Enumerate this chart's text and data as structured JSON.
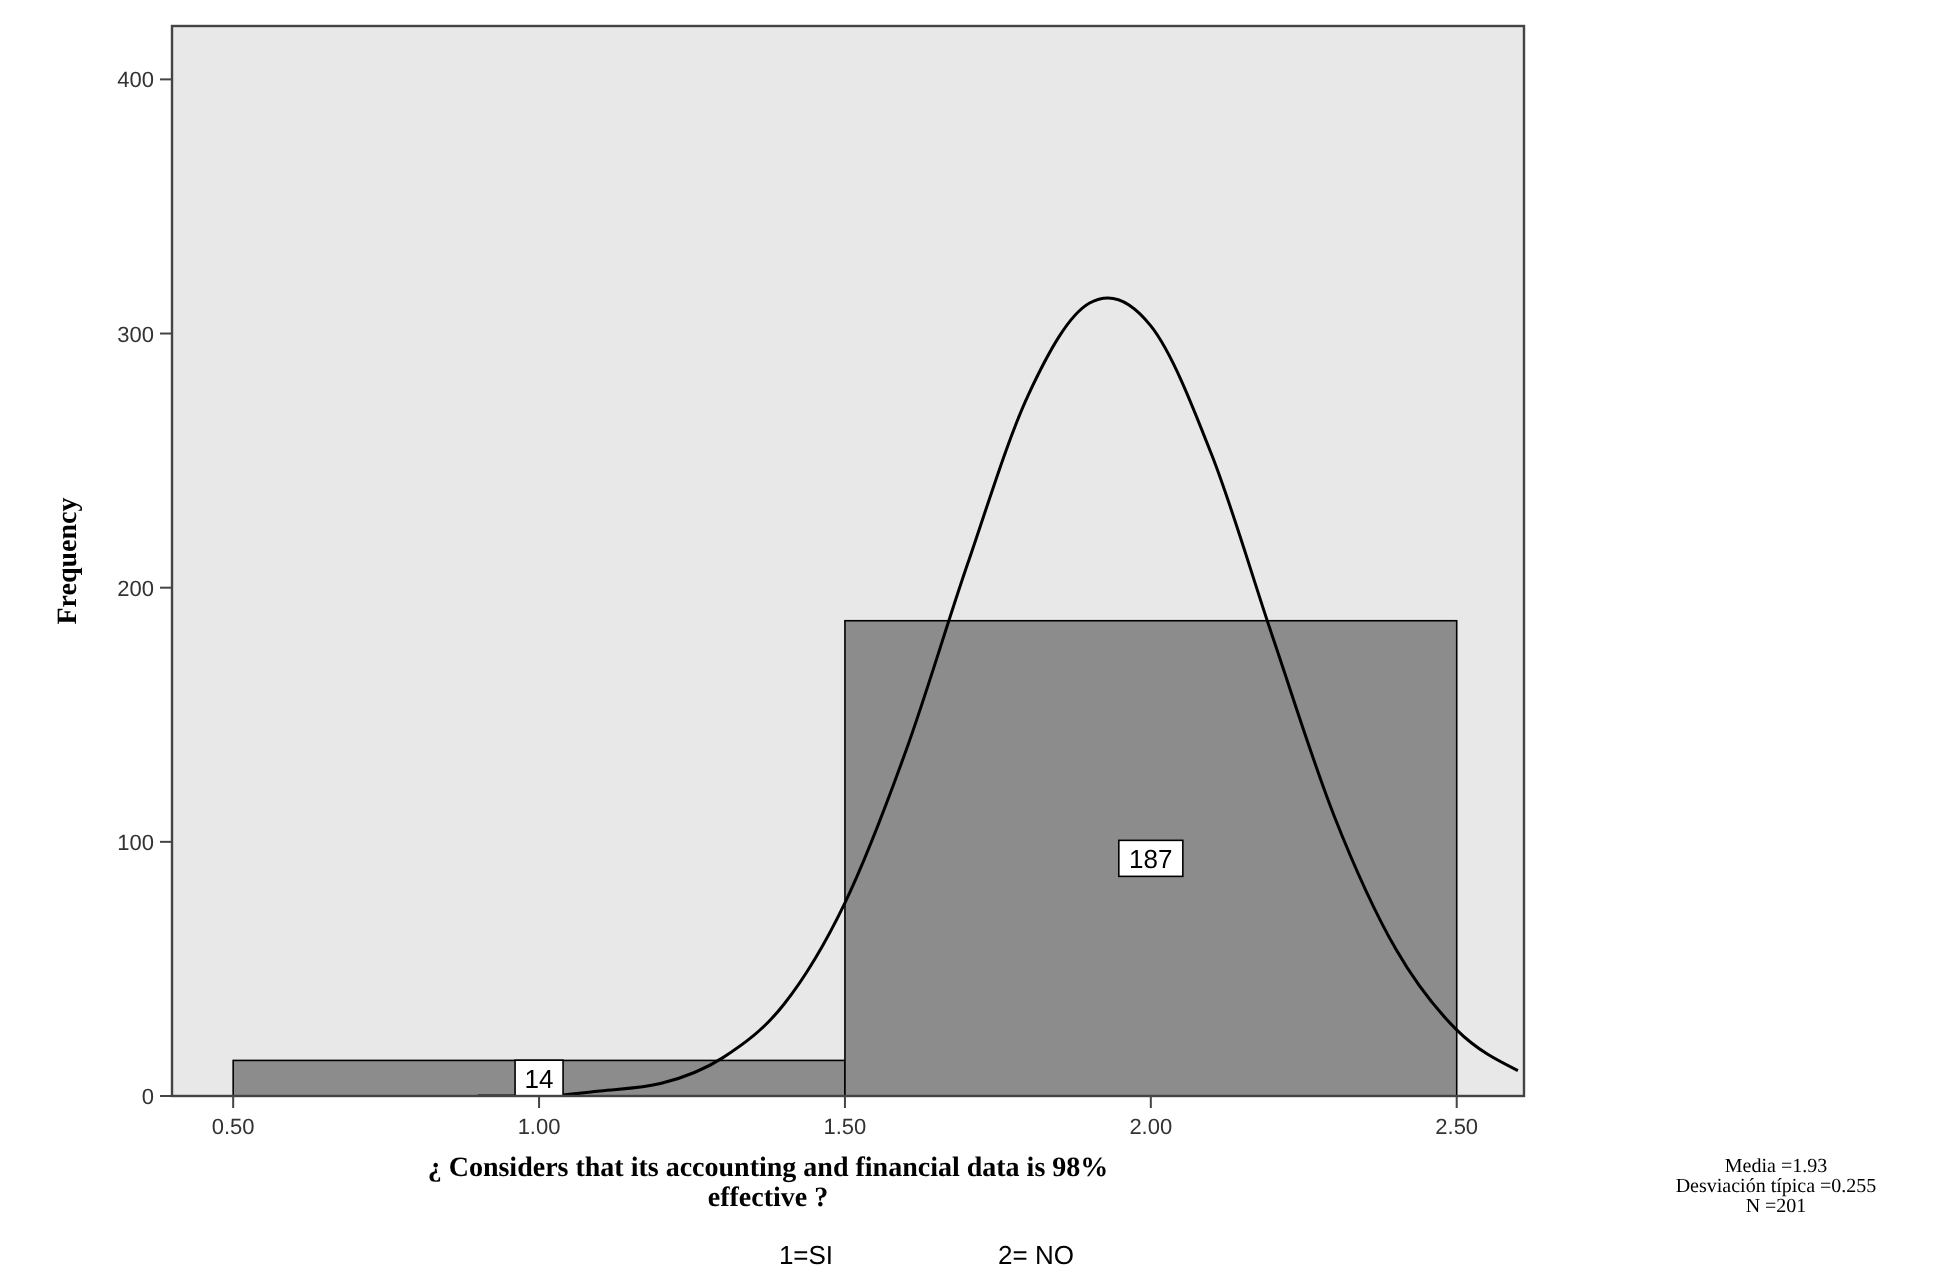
{
  "chart_data": {
    "type": "histogram",
    "xlabel": "¿ Considers that its accounting and financial data is 98% effective  ?",
    "ylabel": "Frequency",
    "bins": [
      0.5,
      1.5,
      2.5
    ],
    "values": [
      14,
      187
    ],
    "color": "#8c8c8c",
    "value_labels": [
      "14",
      "187"
    ],
    "series": [
      {
        "type": "line",
        "color": "#000000",
        "x": [
          0.9,
          1.0,
          1.1,
          1.2,
          1.3,
          1.4,
          1.5,
          1.6,
          1.7,
          1.8,
          1.9,
          1.93,
          2.0,
          2.1,
          2.2,
          2.3,
          2.4,
          2.5,
          2.6
        ],
        "values": [
          0,
          0,
          2,
          5,
          15,
          36,
          76,
          136,
          209,
          276,
          312,
          314,
          303,
          252,
          180,
          110,
          58,
          26,
          10
        ]
      }
    ],
    "xlim": [
      0.4,
      2.61
    ],
    "ylim": [
      0,
      421
    ],
    "xticks": [
      {
        "value": 0.5,
        "label": "0.50"
      },
      {
        "value": 1.0,
        "label": "1.00"
      },
      {
        "value": 1.5,
        "label": "1.50"
      },
      {
        "value": 2.0,
        "label": "2.00"
      },
      {
        "value": 2.5,
        "label": "2.50"
      }
    ],
    "yticks": [
      0,
      100,
      200,
      300,
      400
    ],
    "grid": false,
    "annotations": [
      "Media =1.93",
      "Desviación típica =0.255",
      "N =201",
      "1=SI",
      "2= NO"
    ]
  }
}
